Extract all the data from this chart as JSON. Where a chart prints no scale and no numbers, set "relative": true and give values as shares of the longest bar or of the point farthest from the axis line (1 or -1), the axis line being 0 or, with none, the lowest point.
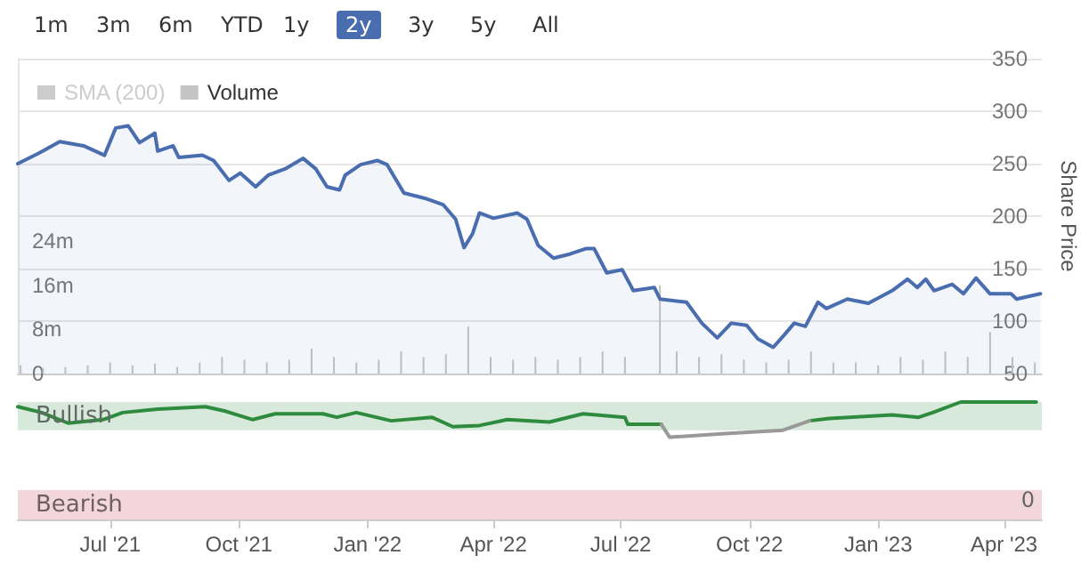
{
  "chart_data": [
    {
      "type": "line",
      "annotations": [
        "1m",
        "3m",
        "6m",
        "YTD",
        "1y",
        "2y",
        "3y",
        "5y",
        "All"
      ],
      "ylabel": "Share Price",
      "xlim": [
        "2021-04-26",
        "2023-04-28"
      ],
      "ylim": [
        50,
        350
      ],
      "yticks": [
        50,
        100,
        150,
        200,
        250,
        300,
        350
      ],
      "y2lim": [
        0,
        57
      ],
      "y2ticks": [
        0,
        {
          "value": 8,
          "label": "8m"
        },
        {
          "value": 16,
          "label": "16m"
        },
        {
          "value": 24,
          "label": "24m"
        }
      ],
      "grid": "y",
      "legend": "top left",
      "tick_labels": "y",
      "marker": "none",
      "series": [
        {
          "name": "SMA (200)",
          "type": "line",
          "color": "#cccccc"
        },
        {
          "name": "Volume",
          "type": "bar",
          "axis": "y2",
          "color": "#c4c4c4",
          "x": [
            "2021-04-28",
            "2021-05-14",
            "2021-05-30",
            "2021-06-15",
            "2021-07-01",
            "2021-07-17",
            "2021-08-02",
            "2021-08-18",
            "2021-09-03",
            "2021-09-19",
            "2021-10-05",
            "2021-10-21",
            "2021-11-06",
            "2021-11-22",
            "2021-12-08",
            "2021-12-24",
            "2022-01-09",
            "2022-01-25",
            "2022-02-10",
            "2022-02-26",
            "2022-03-14",
            "2022-03-30",
            "2022-04-15",
            "2022-05-01",
            "2022-05-17",
            "2022-06-02",
            "2022-06-18",
            "2022-07-04",
            "2022-07-29",
            "2022-08-10",
            "2022-08-26",
            "2022-09-11",
            "2022-09-27",
            "2022-10-13",
            "2022-10-29",
            "2022-11-14",
            "2022-11-30",
            "2022-12-16",
            "2023-01-01",
            "2023-01-17",
            "2023-02-02",
            "2023-02-18",
            "2023-03-06",
            "2023-03-22",
            "2023-04-07",
            "2023-04-23"
          ],
          "values": [
            1.5,
            1,
            1.2,
            1.5,
            2,
            1.5,
            1.8,
            1.2,
            2,
            3,
            2.5,
            2,
            2.5,
            4.5,
            3,
            2,
            2.5,
            4,
            3,
            3.5,
            8.5,
            3,
            2.5,
            3,
            2.5,
            3,
            4,
            3,
            16,
            4,
            3,
            3.5,
            2.5,
            2,
            2.5,
            4,
            2,
            2,
            1.5,
            3,
            2.5,
            4,
            3,
            7.5,
            3,
            2
          ]
        },
        {
          "type": "area",
          "color": "#4a6db0",
          "x": [
            "2021-04-26",
            "2021-05-11",
            "2021-05-26",
            "2021-06-12",
            "2021-06-27",
            "2021-07-05",
            "2021-07-14",
            "2021-07-22",
            "2021-08-02",
            "2021-08-04",
            "2021-08-15",
            "2021-08-19",
            "2021-09-05",
            "2021-09-13",
            "2021-09-24",
            "2021-10-02",
            "2021-10-13",
            "2021-10-22",
            "2021-11-03",
            "2021-11-16",
            "2021-11-25",
            "2021-12-03",
            "2021-12-12",
            "2021-12-16",
            "2021-12-27",
            "2022-01-08",
            "2022-01-15",
            "2022-01-27",
            "2022-02-11",
            "2022-02-24",
            "2022-03-05",
            "2022-03-11",
            "2022-03-17",
            "2022-03-22",
            "2022-04-01",
            "2022-04-18",
            "2022-04-25",
            "2022-05-03",
            "2022-05-14",
            "2022-05-26",
            "2022-06-06",
            "2022-06-12",
            "2022-06-21",
            "2022-07-02",
            "2022-07-10",
            "2022-07-25",
            "2022-07-29",
            "2022-08-17",
            "2022-08-28",
            "2022-09-08",
            "2022-09-18",
            "2022-09-29",
            "2022-10-07",
            "2022-10-18",
            "2022-10-26",
            "2022-11-02",
            "2022-11-10",
            "2022-11-19",
            "2022-11-25",
            "2022-12-10",
            "2022-12-25",
            "2023-01-11",
            "2023-01-22",
            "2023-01-29",
            "2023-02-04",
            "2023-02-10",
            "2023-02-23",
            "2023-03-03",
            "2023-03-12",
            "2023-03-22",
            "2023-04-06",
            "2023-04-10",
            "2023-04-27"
          ],
          "values": [
            250,
            260,
            271,
            267,
            258,
            284,
            286,
            270,
            279,
            262,
            267,
            256,
            258,
            253,
            234,
            241,
            228,
            239,
            245,
            255,
            245,
            228,
            225,
            239,
            249,
            253,
            249,
            222,
            217,
            211,
            197,
            170,
            183,
            203,
            198,
            203,
            197,
            172,
            160,
            164,
            169,
            169,
            146,
            149,
            129,
            132,
            121,
            118,
            98,
            84,
            98,
            96,
            83,
            75,
            87,
            98,
            95,
            118,
            112,
            121,
            117,
            129,
            140,
            132,
            140,
            129,
            135,
            126,
            141,
            126,
            126,
            121,
            126
          ]
        }
      ]
    },
    {
      "type": "line",
      "relative": true,
      "xlim": [
        "2021-04-26",
        "2023-04-28"
      ],
      "xticks": [
        {
          "value": "2021-07-01",
          "label": "Jul '21"
        },
        {
          "value": "2021-10-01",
          "label": "Oct '21"
        },
        {
          "value": "2022-01-01",
          "label": "Jan '22"
        },
        {
          "value": "2022-04-01",
          "label": "Apr '22"
        },
        {
          "value": "2022-07-01",
          "label": "Jul '22"
        },
        {
          "value": "2022-10-01",
          "label": "Oct '22"
        },
        {
          "value": "2023-01-01",
          "label": "Jan '23"
        },
        {
          "value": "2023-04-01",
          "label": "Apr '23"
        }
      ],
      "tick_labels": "x",
      "marker": "none",
      "annotations": [
        "0"
      ],
      "bands": [
        {
          "axis": "y",
          "from": 0.76,
          "to": 1,
          "label": "Bullish",
          "color": "#d6e9da"
        },
        {
          "axis": "y",
          "from": 0,
          "to": 0.25,
          "label": "Bearish",
          "color": "#f3d5dc"
        }
      ],
      "x": [
        "2021-04-26",
        "2021-05-13",
        "2021-06-01",
        "2021-06-26",
        "2021-07-10",
        "2021-08-04",
        "2021-09-07",
        "2021-09-22",
        "2021-10-11",
        "2021-10-27",
        "2021-11-30",
        "2021-12-10",
        "2021-12-24",
        "2022-01-18",
        "2022-02-16",
        "2022-03-03",
        "2022-03-22",
        "2022-04-11",
        "2022-05-11",
        "2022-06-04",
        "2022-07-04",
        "2022-07-06",
        "2022-07-30",
        "2022-08-05",
        "2022-09-11",
        "2022-10-25",
        "2022-11-13",
        "2022-11-27",
        "2023-01-11",
        "2023-01-30",
        "2023-02-09",
        "2023-03-01",
        "2023-04-24"
      ],
      "series": [
        {
          "color": "#2e8b3e",
          "values": [
            0.96,
            0.91,
            0.82,
            0.85,
            0.91,
            0.94,
            0.96,
            0.92,
            0.85,
            0.9,
            0.9,
            0.87,
            0.91,
            0.84,
            0.87,
            0.79,
            0.8,
            0.85,
            0.83,
            0.9,
            0.87,
            0.81,
            0.81,
            null,
            null,
            null,
            0.84,
            0.86,
            0.89,
            0.87,
            0.91,
            1,
            1
          ]
        },
        {
          "color": "#999999",
          "values": [
            null,
            null,
            null,
            null,
            null,
            null,
            null,
            null,
            null,
            null,
            null,
            null,
            null,
            null,
            null,
            null,
            null,
            null,
            null,
            null,
            null,
            null,
            0.81,
            0.7,
            0.73,
            0.76,
            0.84,
            null,
            null,
            null,
            null,
            null,
            null
          ]
        }
      ]
    }
  ]
}
